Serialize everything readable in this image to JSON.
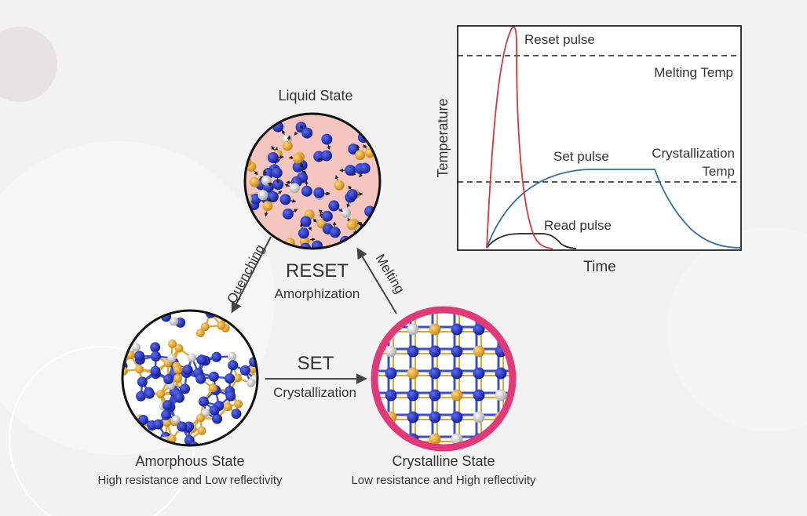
{
  "diagram": {
    "states": {
      "liquid": {
        "label": "Liquid State"
      },
      "amorphous": {
        "label": "Amorphous State",
        "sublabel": "High resistance and Low reflectivity"
      },
      "crystalline": {
        "label": "Crystalline State",
        "sublabel": "Low resistance and High reflectivity"
      }
    },
    "transitions": {
      "quenching": "Quenching",
      "melting": "Melting",
      "reset_title": "RESET",
      "reset_sub": "Amorphization",
      "set_title": "SET",
      "set_sub": "Crystallization"
    },
    "colors": {
      "liquid_bg": "#f5c6c0",
      "atom_blue": "#1f2fb0",
      "atom_gold": "#e8a92e",
      "atom_white": "#d9d9d9",
      "crystal_ring": "#e23a78",
      "bond_blue": "#3a4fd0",
      "bond_gold": "#e0a830"
    }
  },
  "pulse_chart": {
    "ylabel": "Temperature",
    "xlabel": "Time",
    "reset_label": "Reset pulse",
    "set_label": "Set pulse",
    "read_label": "Read pulse",
    "melting_label": "Melting Temp",
    "crystallization_label_1": "Crystallization",
    "crystallization_label_2": "Temp",
    "colors": {
      "reset": "#d03a3a",
      "set": "#2d6fa8",
      "read": "#222222"
    }
  }
}
